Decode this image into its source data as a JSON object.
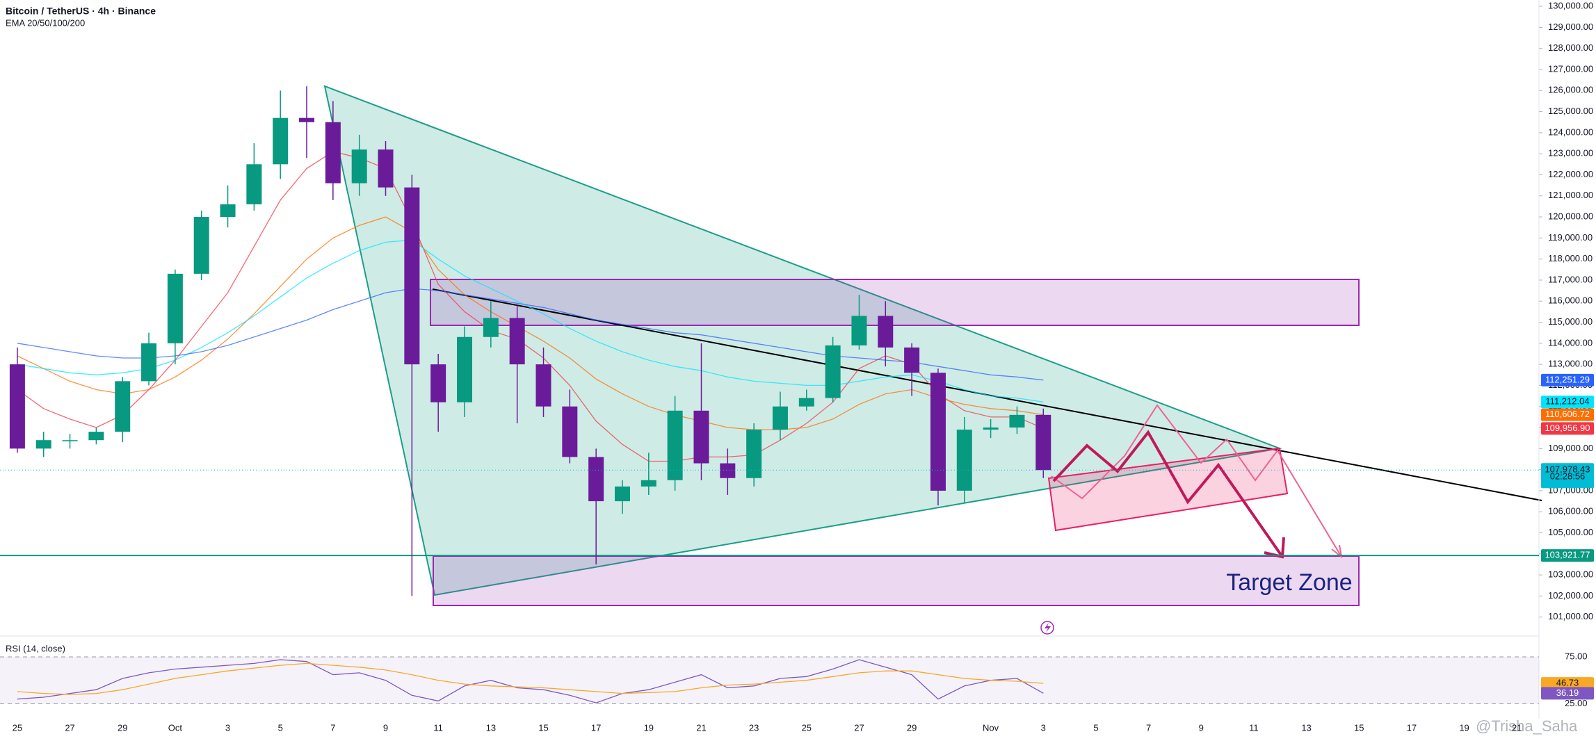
{
  "chart_data": {
    "type": "candlestick",
    "title": "Bitcoin / TetherUS · 4h · Binance",
    "indicator_label": "EMA 20/50/100/200",
    "categories": [
      "25",
      null,
      "27",
      null,
      "29",
      null,
      "Oct",
      null,
      "3",
      null,
      "5",
      null,
      "7",
      null,
      "9",
      null,
      "11",
      null,
      "13",
      null,
      "15",
      null,
      "17",
      null,
      "19",
      null,
      "21",
      null,
      "23",
      null,
      "25",
      null,
      "27",
      null,
      "29",
      null,
      null,
      "Nov",
      null,
      "3",
      null,
      "5",
      null,
      "7",
      null,
      "9",
      null,
      "11",
      null,
      "13",
      null,
      "15",
      null,
      "17",
      null,
      "19",
      null,
      "21"
    ],
    "open": [
      113000,
      109000,
      109400,
      109400,
      109800,
      112200,
      114000,
      117300,
      120000,
      120600,
      122500,
      124700,
      124500,
      121600,
      123200,
      121400,
      113000,
      111200,
      114300,
      115200,
      113000,
      111000,
      108600,
      106500,
      107200,
      107500,
      110800,
      108300,
      107600,
      109900,
      111000,
      111400,
      113900,
      115300,
      113800,
      112600,
      107000,
      109900,
      110000,
      110600,
      null,
      null,
      null,
      null,
      null,
      null,
      null,
      null,
      null,
      null,
      null,
      null,
      null,
      null,
      null,
      null,
      null,
      null
    ],
    "high": [
      113800,
      109800,
      109700,
      110000,
      112400,
      114500,
      117500,
      120300,
      121500,
      123500,
      126000,
      126200,
      125500,
      123900,
      123600,
      122000,
      113500,
      114800,
      116000,
      115800,
      113800,
      111800,
      109000,
      107500,
      108800,
      111500,
      114000,
      109000,
      110200,
      111700,
      111800,
      114300,
      116300,
      116000,
      114000,
      112800,
      110500,
      110400,
      111000,
      110900,
      null,
      null,
      null,
      null,
      null,
      null,
      null,
      null,
      null,
      null,
      null,
      null,
      null,
      null,
      null,
      null,
      null,
      null
    ],
    "low": [
      108800,
      108600,
      109000,
      109200,
      109300,
      112000,
      113000,
      117000,
      119500,
      120300,
      121800,
      122800,
      120800,
      121000,
      121000,
      102000,
      109800,
      110500,
      113800,
      110200,
      110500,
      108300,
      103500,
      105900,
      106800,
      107000,
      107500,
      106800,
      107200,
      109400,
      110800,
      111200,
      113700,
      112900,
      111500,
      106300,
      106400,
      109500,
      109700,
      107600,
      null,
      null,
      null,
      null,
      null,
      null,
      null,
      null,
      null,
      null,
      null,
      null,
      null,
      null,
      null,
      null,
      null,
      null
    ],
    "close": [
      109000,
      109400,
      109400,
      109800,
      112200,
      114000,
      117300,
      120000,
      120600,
      122500,
      124700,
      124500,
      121600,
      123200,
      121400,
      113000,
      111200,
      114300,
      115200,
      113000,
      111000,
      108600,
      106500,
      107200,
      107500,
      110800,
      108300,
      107600,
      109900,
      111000,
      111400,
      113900,
      115300,
      113800,
      112600,
      107000,
      109900,
      110000,
      110600,
      107978.43,
      null,
      null,
      null,
      null,
      null,
      null,
      null,
      null,
      null,
      null,
      null,
      null,
      null,
      null,
      null,
      null,
      null,
      null
    ],
    "current_price_label": "107,978.43",
    "countdown": "02:28:56",
    "up_color": "#089981",
    "down_color": "#6a1b9a",
    "current_color": "#00bcd4",
    "series": [
      {
        "color": "#f23645",
        "last_label": "109,956.90",
        "values": [
          111800,
          110900,
          110400,
          110000,
          110600,
          111800,
          113200,
          114800,
          116400,
          118600,
          120800,
          122300,
          123100,
          122800,
          122300,
          119800,
          116800,
          115500,
          114600,
          114200,
          113300,
          112000,
          110300,
          109200,
          108400,
          108400,
          108600,
          108600,
          108700,
          109400,
          110200,
          111200,
          112800,
          113400,
          113000,
          111600,
          110800,
          110500,
          110500,
          109956.9,
          null,
          null,
          null,
          null,
          null,
          null,
          null,
          null,
          null,
          null,
          null,
          null,
          null,
          null,
          null,
          null,
          null,
          null
        ]
      },
      {
        "color": "#ff6d00",
        "last_label": "110,606.72",
        "values": [
          113400,
          112800,
          112200,
          111800,
          111600,
          111800,
          112400,
          113200,
          114200,
          115400,
          116700,
          118000,
          119000,
          119600,
          120000,
          119300,
          117500,
          116300,
          115500,
          114800,
          114100,
          113300,
          112300,
          111600,
          111000,
          110600,
          110300,
          110000,
          109900,
          109900,
          110000,
          110400,
          111100,
          111600,
          111800,
          111400,
          111100,
          110900,
          110800,
          110606.72,
          null,
          null,
          null,
          null,
          null,
          null,
          null,
          null,
          null,
          null,
          null,
          null,
          null,
          null,
          null,
          null,
          null,
          null
        ]
      },
      {
        "color": "#00e5ff",
        "last_label": "111,212.04",
        "values": [
          113000,
          112800,
          112600,
          112500,
          112600,
          112800,
          113200,
          113800,
          114500,
          115300,
          116200,
          117100,
          117800,
          118400,
          118800,
          118900,
          118000,
          117200,
          116600,
          116000,
          115400,
          114700,
          114100,
          113600,
          113200,
          112900,
          112700,
          112400,
          112200,
          112100,
          112000,
          112000,
          112200,
          112400,
          112500,
          112200,
          111800,
          111500,
          111400,
          111212.04,
          null,
          null,
          null,
          null,
          null,
          null,
          null,
          null,
          null,
          null,
          null,
          null,
          null,
          null,
          null,
          null,
          null,
          null
        ]
      },
      {
        "color": "#2962ff",
        "last_label": "112,251.29",
        "values": [
          114000,
          113800,
          113600,
          113400,
          113300,
          113300,
          113400,
          113600,
          113900,
          114300,
          114700,
          115100,
          115600,
          116000,
          116400,
          116600,
          116500,
          116300,
          116100,
          115900,
          115700,
          115400,
          115100,
          114900,
          114700,
          114500,
          114400,
          114200,
          114000,
          113800,
          113600,
          113400,
          113300,
          113200,
          113100,
          112900,
          112700,
          112500,
          112400,
          112251.29,
          null,
          null,
          null,
          null,
          null,
          null,
          null,
          null,
          null,
          null,
          null,
          null,
          null,
          null,
          null,
          null,
          null,
          null
        ]
      }
    ],
    "ylim": [
      100000,
      130300
    ],
    "yticks": [
      {
        "value": 101000,
        "label": "101,000.00"
      },
      {
        "value": 102000,
        "label": "102,000.00"
      },
      {
        "value": 103000,
        "label": "103,000.00"
      },
      {
        "value": 104000,
        "label": "104,000.00"
      },
      {
        "value": 105000,
        "label": "105,000.00"
      },
      {
        "value": 106000,
        "label": "106,000.00"
      },
      {
        "value": 107000,
        "label": "107,000.00"
      },
      {
        "value": 108000,
        "label": "108,000.00"
      },
      {
        "value": 109000,
        "label": "109,000.00"
      },
      {
        "value": 110000,
        "label": "110,000.00"
      },
      {
        "value": 111000,
        "label": "111,000.00"
      },
      {
        "value": 112000,
        "label": "112,000.00"
      },
      {
        "value": 113000,
        "label": "113,000.00"
      },
      {
        "value": 114000,
        "label": "114,000.00"
      },
      {
        "value": 115000,
        "label": "115,000.00"
      },
      {
        "value": 116000,
        "label": "116,000.00"
      },
      {
        "value": 117000,
        "label": "117,000.00"
      },
      {
        "value": 118000,
        "label": "118,000.00"
      },
      {
        "value": 119000,
        "label": "119,000.00"
      },
      {
        "value": 120000,
        "label": "120,000.00"
      },
      {
        "value": 121000,
        "label": "121,000.00"
      },
      {
        "value": 122000,
        "label": "122,000.00"
      },
      {
        "value": 123000,
        "label": "123,000.00"
      },
      {
        "value": 124000,
        "label": "124,000.00"
      },
      {
        "value": 125000,
        "label": "125,000.00"
      },
      {
        "value": 126000,
        "label": "126,000.00"
      },
      {
        "value": 127000,
        "label": "127,000.00"
      },
      {
        "value": 128000,
        "label": "128,000.00"
      },
      {
        "value": 129000,
        "label": "129,000.00"
      },
      {
        "value": 130000,
        "label": "130,000.00"
      }
    ],
    "price_line": {
      "value": 103921.77,
      "label": "103,921.77",
      "color": "#089981"
    },
    "annotation": "Target Zone",
    "watermark": "@Trisha_Saha",
    "rsi": {
      "title": "RSI (14, close)",
      "color": "#7e57c2",
      "ma_color": "#f9a825",
      "last_label": "36.19",
      "ma_last_label": "46.73",
      "values": [
        30,
        32,
        36,
        40,
        52,
        58,
        62,
        64,
        66,
        68,
        72,
        70,
        56,
        58,
        50,
        34,
        28,
        44,
        50,
        42,
        40,
        34,
        26,
        36,
        40,
        48,
        56,
        42,
        44,
        52,
        54,
        62,
        72,
        64,
        56,
        30,
        44,
        50,
        52,
        36.19,
        null,
        null,
        null,
        null,
        null,
        null,
        null,
        null,
        null,
        null,
        null,
        null,
        null,
        null,
        null,
        null,
        null,
        null
      ],
      "ma_values": [
        38,
        36,
        35,
        36,
        40,
        46,
        52,
        56,
        60,
        63,
        66,
        68,
        66,
        64,
        61,
        56,
        50,
        46,
        44,
        43,
        42,
        40,
        38,
        36,
        37,
        38,
        42,
        45,
        46,
        48,
        50,
        54,
        58,
        60,
        60,
        56,
        52,
        50,
        49,
        46.73,
        null,
        null,
        null,
        null,
        null,
        null,
        null,
        null,
        null,
        null,
        null,
        null,
        null,
        null,
        null,
        null,
        null,
        null
      ],
      "ylim": [
        12,
        92
      ],
      "yticks": [
        {
          "value": 75,
          "label": "75.00"
        },
        {
          "value": 25,
          "label": "25.00"
        }
      ]
    }
  }
}
